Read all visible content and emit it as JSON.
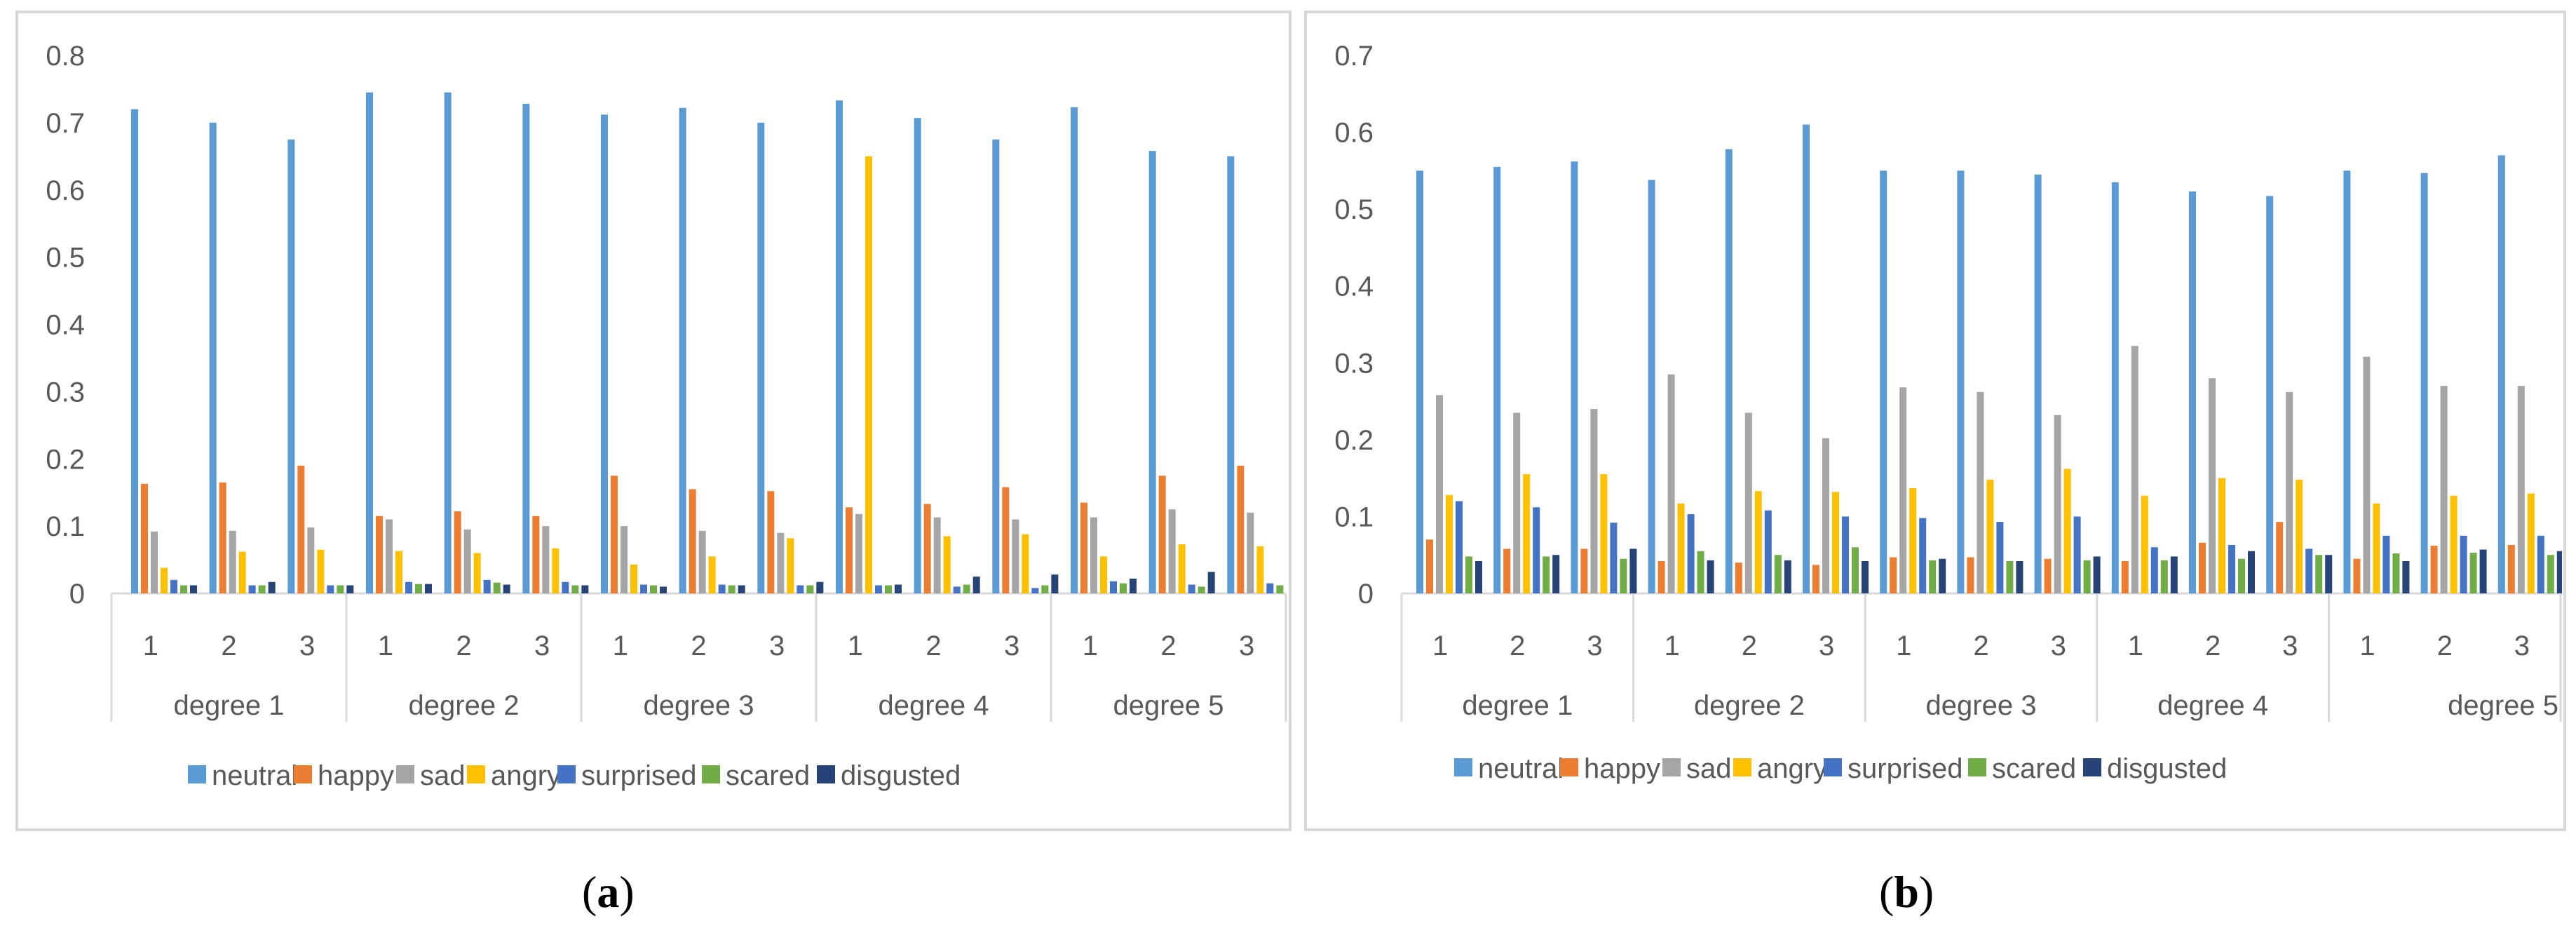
{
  "panels": [
    {
      "label_open": "(",
      "label_letter": "a",
      "label_close": ")"
    },
    {
      "label_open": "(",
      "label_letter": "b",
      "label_close": ")"
    }
  ],
  "chart_data": [
    {
      "type": "bar",
      "panel": "a",
      "title": "",
      "xlabel": "",
      "ylabel": "",
      "ylim": [
        0,
        0.8
      ],
      "yticks": [
        "0",
        "0.1",
        "0.2",
        "0.3",
        "0.4",
        "0.5",
        "0.6",
        "0.7",
        "0.8"
      ],
      "grid": false,
      "legend_position": "bottom",
      "groups": [
        {
          "label": "degree 1",
          "trials": [
            "1",
            "2",
            "3"
          ]
        },
        {
          "label": "degree 2",
          "trials": [
            "1",
            "2",
            "3"
          ]
        },
        {
          "label": "degree 3",
          "trials": [
            "1",
            "2",
            "3"
          ]
        },
        {
          "label": "degree 4",
          "trials": [
            "1",
            "2",
            "3"
          ]
        },
        {
          "label": "degree 5",
          "trials": [
            "1",
            "2",
            "3"
          ]
        }
      ],
      "categories": [
        "degree 1-1",
        "degree 1-2",
        "degree 1-3",
        "degree 2-1",
        "degree 2-2",
        "degree 2-3",
        "degree 3-1",
        "degree 3-2",
        "degree 3-3",
        "degree 4-1",
        "degree 4-2",
        "degree 4-3",
        "degree 5-1",
        "degree 5-2",
        "degree 5-3"
      ],
      "series": [
        {
          "name": "neutral",
          "color": "#5b9bd5",
          "values": [
            0.72,
            0.7,
            0.675,
            0.745,
            0.745,
            0.728,
            0.712,
            0.722,
            0.7,
            0.733,
            0.707,
            0.675,
            0.723,
            0.658,
            0.65
          ]
        },
        {
          "name": "happy",
          "color": "#ed7d31",
          "values": [
            0.163,
            0.165,
            0.19,
            0.115,
            0.122,
            0.115,
            0.175,
            0.155,
            0.152,
            0.128,
            0.133,
            0.158,
            0.135,
            0.175,
            0.19
          ]
        },
        {
          "name": "sad",
          "color": "#a5a5a5",
          "values": [
            0.092,
            0.093,
            0.098,
            0.11,
            0.095,
            0.1,
            0.1,
            0.093,
            0.09,
            0.118,
            0.113,
            0.11,
            0.113,
            0.125,
            0.12
          ]
        },
        {
          "name": "angry",
          "color": "#ffc000",
          "values": [
            0.038,
            0.062,
            0.065,
            0.063,
            0.06,
            0.067,
            0.043,
            0.055,
            0.082,
            0.65,
            0.085,
            0.088,
            0.055,
            0.073,
            0.07
          ]
        },
        {
          "name": "surprised",
          "color": "#4472c4",
          "values": [
            0.02,
            0.012,
            0.012,
            0.017,
            0.02,
            0.017,
            0.013,
            0.013,
            0.012,
            0.012,
            0.01,
            0.008,
            0.018,
            0.013,
            0.015
          ]
        },
        {
          "name": "scared",
          "color": "#70ad47",
          "values": [
            0.012,
            0.012,
            0.012,
            0.014,
            0.016,
            0.012,
            0.012,
            0.012,
            0.012,
            0.012,
            0.013,
            0.012,
            0.015,
            0.01,
            0.012
          ]
        },
        {
          "name": "disgusted",
          "color": "#264478",
          "values": [
            0.012,
            0.017,
            0.012,
            0.014,
            0.013,
            0.012,
            0.01,
            0.012,
            0.017,
            0.013,
            0.025,
            0.028,
            0.022,
            0.032,
            0.03
          ]
        }
      ]
    },
    {
      "type": "bar",
      "panel": "b",
      "title": "",
      "xlabel": "",
      "ylabel": "",
      "ylim": [
        0,
        0.7
      ],
      "yticks": [
        "0",
        "0.1",
        "0.2",
        "0.3",
        "0.4",
        "0.5",
        "0.6",
        "0.7"
      ],
      "grid": false,
      "legend_position": "bottom",
      "groups": [
        {
          "label": "degree 1",
          "trials": [
            "1",
            "2",
            "3"
          ]
        },
        {
          "label": "degree 2",
          "trials": [
            "1",
            "2",
            "3"
          ]
        },
        {
          "label": "degree 3",
          "trials": [
            "1",
            "2",
            "3"
          ]
        },
        {
          "label": "degree 4",
          "trials": [
            "1",
            "2",
            "3"
          ]
        },
        {
          "label": "degree 5",
          "trials": [
            "1",
            "2",
            "3"
          ]
        }
      ],
      "categories": [
        "degree 1-1",
        "degree 1-2",
        "degree 1-3",
        "degree 2-1",
        "degree 2-2",
        "degree 2-3",
        "degree 3-1",
        "degree 3-2",
        "degree 3-3",
        "degree 4-1",
        "degree 4-2",
        "degree 4-3",
        "degree 5-1",
        "degree 5-2",
        "degree 5-3"
      ],
      "series": [
        {
          "name": "neutral",
          "color": "#5b9bd5",
          "values": [
            0.55,
            0.555,
            0.562,
            0.538,
            0.578,
            0.61,
            0.55,
            0.55,
            0.545,
            0.535,
            0.523,
            0.517,
            0.55,
            0.547,
            0.57
          ]
        },
        {
          "name": "happy",
          "color": "#ed7d31",
          "values": [
            0.07,
            0.058,
            0.058,
            0.042,
            0.04,
            0.037,
            0.047,
            0.047,
            0.045,
            0.042,
            0.066,
            0.093,
            0.045,
            0.062,
            0.063
          ]
        },
        {
          "name": "sad",
          "color": "#a5a5a5",
          "values": [
            0.258,
            0.235,
            0.24,
            0.285,
            0.235,
            0.202,
            0.268,
            0.262,
            0.232,
            0.322,
            0.28,
            0.262,
            0.308,
            0.27,
            0.27
          ]
        },
        {
          "name": "angry",
          "color": "#ffc000",
          "values": [
            0.128,
            0.155,
            0.155,
            0.117,
            0.133,
            0.132,
            0.137,
            0.148,
            0.162,
            0.127,
            0.15,
            0.148,
            0.117,
            0.127,
            0.13
          ]
        },
        {
          "name": "surprised",
          "color": "#4472c4",
          "values": [
            0.12,
            0.112,
            0.092,
            0.103,
            0.108,
            0.1,
            0.098,
            0.093,
            0.1,
            0.06,
            0.063,
            0.058,
            0.075,
            0.075,
            0.075
          ]
        },
        {
          "name": "scared",
          "color": "#70ad47",
          "values": [
            0.048,
            0.048,
            0.045,
            0.055,
            0.05,
            0.06,
            0.043,
            0.042,
            0.043,
            0.043,
            0.045,
            0.05,
            0.052,
            0.053,
            0.05
          ]
        },
        {
          "name": "disgusted",
          "color": "#264478",
          "values": [
            0.042,
            0.05,
            0.058,
            0.043,
            0.043,
            0.042,
            0.045,
            0.042,
            0.048,
            0.048,
            0.055,
            0.05,
            0.042,
            0.057,
            0.055
          ]
        }
      ]
    }
  ]
}
